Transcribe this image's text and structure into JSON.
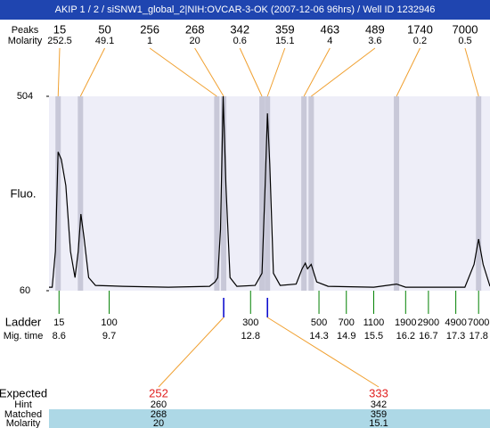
{
  "chart_data": {
    "type": "electropherogram",
    "title": "AKIP 1 / 2 / siSNW1_global_2|NIH:OVCAR-3-OK (2007-12-06 96hrs) / Well ID 1232946",
    "y_label": "Fluo.",
    "ylim": [
      60,
      504
    ],
    "yticks": [
      60,
      504
    ],
    "xlim": [
      8.38,
      18.05
    ],
    "peaks": {
      "size_label": "Peaks",
      "molarity_label": "Molarity",
      "sizes": [
        15,
        50,
        256,
        268,
        342,
        359,
        463,
        489,
        1740,
        7000
      ],
      "molarity": [
        252.5,
        49.1,
        1,
        20,
        0.6,
        15.1,
        4,
        3.6,
        0.2,
        0.5
      ],
      "x": [
        8.58,
        9.07,
        12.06,
        12.21,
        13.05,
        13.17,
        13.97,
        14.13,
        16.0,
        17.8
      ],
      "color": "#c8c8d8",
      "connector_color": "#f0a030"
    },
    "trace": {
      "color": "#000000",
      "x": [
        8.38,
        8.45,
        8.52,
        8.58,
        8.65,
        8.75,
        8.85,
        8.95,
        9.02,
        9.08,
        9.15,
        9.25,
        9.4,
        10,
        11,
        11.9,
        12.02,
        12.08,
        12.14,
        12.2,
        12.26,
        12.35,
        12.5,
        12.9,
        13.05,
        13.12,
        13.17,
        13.22,
        13.3,
        13.45,
        13.8,
        13.93,
        14.0,
        14.05,
        14.13,
        14.25,
        14.5,
        15.5,
        16.0,
        16.2,
        17.5,
        17.7,
        17.8,
        17.9,
        18.05
      ],
      "values": [
        68,
        68,
        150,
        377,
        360,
        300,
        150,
        90,
        150,
        235,
        180,
        90,
        72,
        70,
        68,
        70,
        80,
        90,
        200,
        504,
        300,
        90,
        70,
        72,
        100,
        300,
        465,
        350,
        100,
        72,
        75,
        110,
        123,
        110,
        120,
        80,
        70,
        68,
        75,
        68,
        68,
        120,
        178,
        120,
        70
      ]
    },
    "ladder": {
      "label": "Ladder",
      "time_label": "Mig. time",
      "color": "#008000",
      "sizes": [
        15,
        100,
        300,
        500,
        700,
        1100,
        1900,
        2900,
        4900,
        7000
      ],
      "times": [
        8.6,
        9.7,
        12.8,
        14.3,
        14.9,
        15.5,
        16.2,
        16.7,
        17.3,
        17.8
      ]
    },
    "expected": {
      "label": "Expected",
      "hint_label": "Hint",
      "matched_label": "Matched",
      "molarity_label": "Molarity",
      "expected": [
        252,
        333
      ],
      "hint": [
        260,
        342
      ],
      "matched": [
        268,
        359
      ],
      "molarity": [
        20,
        15.1
      ],
      "x": [
        12.21,
        13.17
      ]
    }
  }
}
